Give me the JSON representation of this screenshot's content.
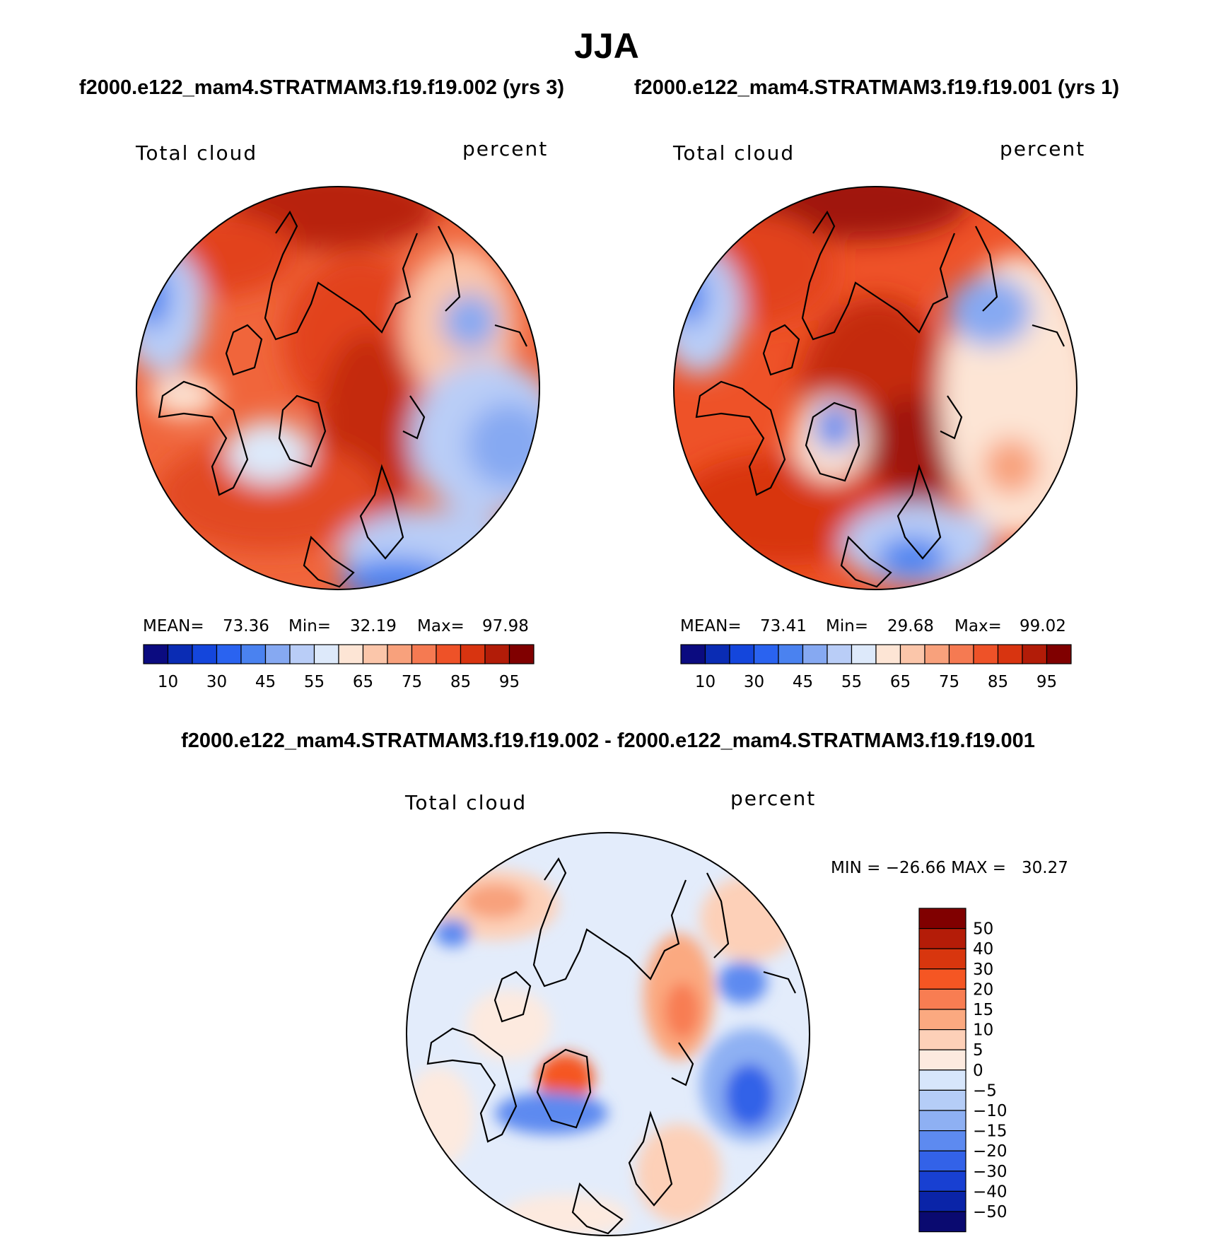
{
  "chart_data": {
    "type": "contour-map",
    "title": "JJA",
    "variable": "Total cloud",
    "units": "percent",
    "panels": [
      {
        "id": "case",
        "subtitle": "f2000.e122_mam4.STRATMAM3.f19.f19.002 (yrs 3)",
        "stats": {
          "mean_label": "MEAN=",
          "mean": "73.36",
          "min_label": "Min=",
          "min": "32.19",
          "max_label": "Max=",
          "max": "97.98"
        }
      },
      {
        "id": "control",
        "subtitle": "f2000.e122_mam4.STRATMAM3.f19.f19.001 (yrs 1)",
        "stats": {
          "mean_label": "MEAN=",
          "mean": "73.41",
          "min_label": "Min=",
          "min": "29.68",
          "max_label": "Max=",
          "max": "99.02"
        }
      }
    ],
    "abs_colorbar": {
      "levels": [
        5,
        10,
        20,
        30,
        40,
        45,
        50,
        55,
        60,
        65,
        70,
        75,
        80,
        85,
        90,
        95
      ],
      "tick_labels": [
        "10",
        "30",
        "45",
        "55",
        "65",
        "75",
        "85",
        "95"
      ],
      "colors": [
        "#0b0b80",
        "#0a2cb4",
        "#1446dc",
        "#2a63f0",
        "#4a82f0",
        "#86a9f2",
        "#b9cdf7",
        "#dde9fa",
        "#fde5d5",
        "#fbc6aa",
        "#f8a17c",
        "#f57a52",
        "#ee5228",
        "#d83410",
        "#b21c08",
        "#800000"
      ]
    },
    "diff_panel": {
      "subtitle": "f2000.e122_mam4.STRATMAM3.f19.f19.002 - f2000.e122_mam4.STRATMAM3.f19.f19.001",
      "min_max_text": "MIN = −26.66 MAX =   30.27",
      "levels": [
        "50",
        "40",
        "30",
        "20",
        "15",
        "10",
        "5",
        "0",
        "−5",
        "−10",
        "−15",
        "−20",
        "−30",
        "−40",
        "−50"
      ],
      "colors": [
        "#800000",
        "#b41c08",
        "#d8360e",
        "#f55623",
        "#f87d52",
        "#fba980",
        "#fdd0b8",
        "#fdeadf",
        "#d7e6fb",
        "#b5cdf7",
        "#8eb0f3",
        "#5d8af0",
        "#3362e8",
        "#1840d2",
        "#0a24a8",
        "#0a0a70"
      ]
    }
  }
}
